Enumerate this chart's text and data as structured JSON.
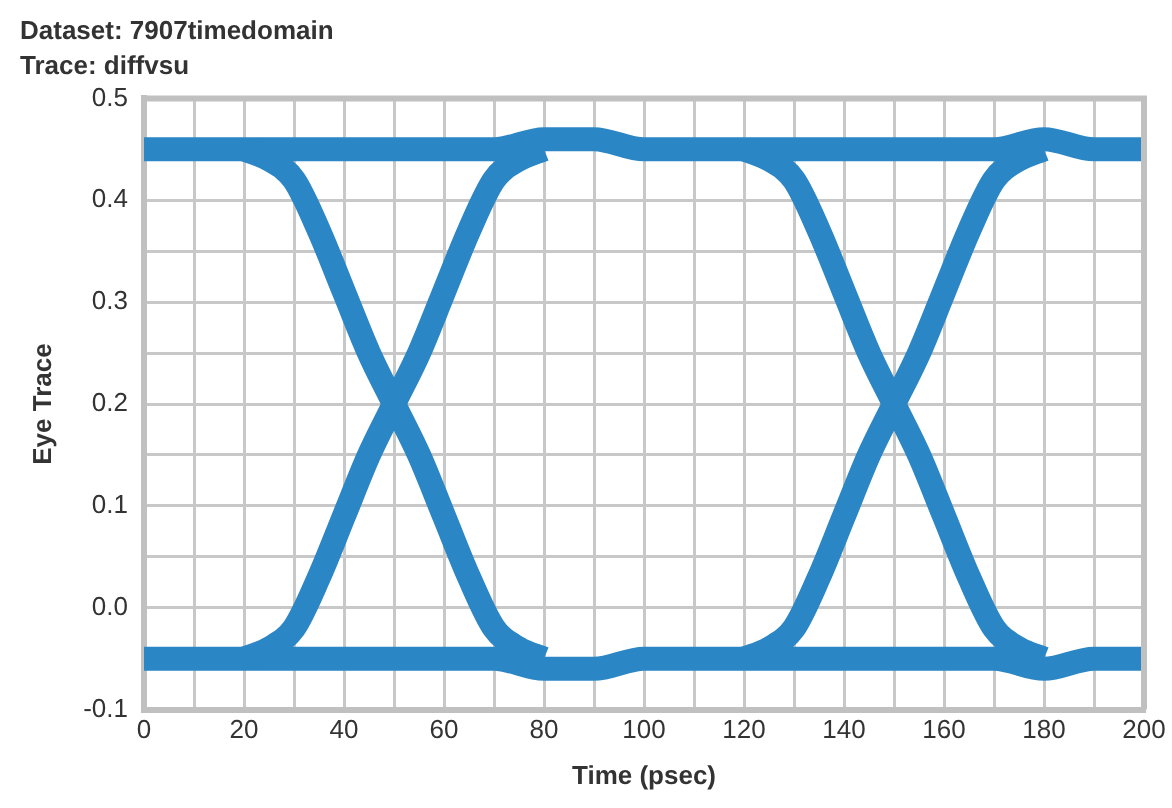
{
  "chart_data": {
    "type": "line",
    "title": "Dataset: 7907timedomain",
    "subtitle": "Trace: diffvsu",
    "xlabel": "Time (psec)",
    "ylabel": "Eye Trace",
    "x": [
      0,
      10,
      20,
      30,
      40,
      50,
      60,
      70,
      80,
      90,
      100,
      110,
      120,
      130,
      140,
      150,
      160,
      170,
      180,
      190,
      200
    ],
    "series": [
      {
        "color": "#2a86c5",
        "x": [
          20,
          25,
          30,
          35,
          40,
          45,
          50,
          55,
          60,
          65,
          70,
          75,
          80,
          100,
          120,
          125,
          130,
          135,
          140,
          145,
          150,
          155,
          160,
          165,
          170,
          175,
          180
        ],
        "values": [
          0.45,
          0.44,
          0.42,
          0.37,
          0.31,
          0.25,
          0.2,
          0.15,
          0.09,
          0.03,
          -0.02,
          -0.04,
          -0.05,
          null,
          0.45,
          0.44,
          0.42,
          0.37,
          0.31,
          0.25,
          0.2,
          0.15,
          0.09,
          0.03,
          -0.02,
          -0.04,
          -0.05
        ]
      },
      {
        "color": "#2a86c5",
        "x": [
          20,
          25,
          30,
          35,
          40,
          45,
          50,
          55,
          60,
          65,
          70,
          75,
          80,
          100,
          120,
          125,
          130,
          135,
          140,
          145,
          150,
          155,
          160,
          165,
          170,
          175,
          180
        ],
        "values": [
          -0.05,
          -0.04,
          -0.02,
          0.03,
          0.09,
          0.15,
          0.2,
          0.25,
          0.31,
          0.37,
          0.42,
          0.44,
          0.45,
          null,
          -0.05,
          -0.04,
          -0.02,
          0.03,
          0.09,
          0.15,
          0.2,
          0.25,
          0.31,
          0.37,
          0.42,
          0.44,
          0.45
        ]
      },
      {
        "color": "#2a86c5",
        "values": [
          0.45,
          0.45,
          0.45,
          0.45,
          0.45,
          0.45,
          0.45,
          0.45,
          0.46,
          0.46,
          0.45,
          0.45,
          0.45,
          0.45,
          0.45,
          0.45,
          0.45,
          0.45,
          0.46,
          0.45,
          0.45
        ]
      },
      {
        "color": "#2a86c5",
        "values": [
          -0.05,
          -0.05,
          -0.05,
          -0.05,
          -0.05,
          -0.05,
          -0.05,
          -0.05,
          -0.06,
          -0.06,
          -0.05,
          -0.05,
          -0.05,
          -0.05,
          -0.05,
          -0.05,
          -0.05,
          -0.05,
          -0.06,
          -0.05,
          -0.05
        ]
      }
    ],
    "xlim": [
      0,
      200
    ],
    "xticks": [
      0,
      {
        "value": 10,
        "label": null
      },
      20,
      {
        "value": 30,
        "label": null
      },
      40,
      {
        "value": 50,
        "label": null
      },
      60,
      {
        "value": 70,
        "label": null
      },
      80,
      {
        "value": 90,
        "label": null
      },
      100,
      {
        "value": 110,
        "label": null
      },
      120,
      {
        "value": 130,
        "label": null
      },
      140,
      {
        "value": 150,
        "label": null
      },
      160,
      {
        "value": 170,
        "label": null
      },
      180,
      {
        "value": 190,
        "label": null
      },
      200
    ],
    "ylim": [
      -0.1,
      0.5
    ],
    "yticks": [
      -0.1,
      {
        "value": 0,
        "label": "0.0"
      },
      {
        "value": 0.05,
        "label": null
      },
      0.1,
      {
        "value": 0.15,
        "label": null
      },
      0.2,
      {
        "value": 0.25,
        "label": null
      },
      0.3,
      {
        "value": 0.35,
        "label": null
      },
      0.4,
      0.5
    ],
    "grid": true,
    "legend": false
  }
}
